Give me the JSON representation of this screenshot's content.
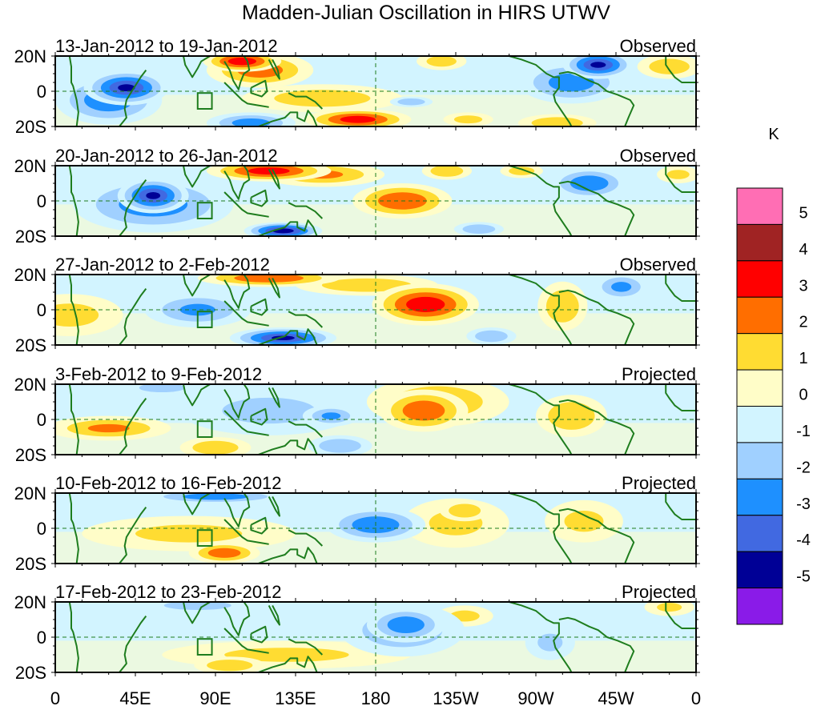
{
  "chart_data": {
    "type": "heatmap",
    "title": "Madden-Julian Oscillation in HIRS UTWV",
    "units": "K",
    "x_ticks": [
      "0",
      "45E",
      "90E",
      "135E",
      "180",
      "135W",
      "90W",
      "45W",
      "0"
    ],
    "x_range_deg_east": [
      0,
      360
    ],
    "y_ticks": [
      "20N",
      "0",
      "20S"
    ],
    "y_range_deg": [
      -20,
      20
    ],
    "colorbar": {
      "levels": [
        -5,
        -4,
        -3,
        -2,
        -1,
        0,
        1,
        2,
        3,
        4,
        5
      ],
      "tick_labels": [
        "5",
        "4",
        "3",
        "2",
        "1",
        "0",
        "-1",
        "-2",
        "-3",
        "-4",
        "-5"
      ],
      "colors": [
        "#8a1be8",
        "#000096",
        "#4169e1",
        "#1e90ff",
        "#a0d0ff",
        "#d2f4ff",
        "#fffdc8",
        "#ffdc32",
        "#ff6e00",
        "#ff0000",
        "#a02323",
        "#ff6eb4"
      ],
      "placement": "right"
    },
    "panels": [
      {
        "period": "13-Jan-2012 to 19-Jan-2012",
        "status": "Observed",
        "anomalies": [
          {
            "lon": 40,
            "lat": 2,
            "value": -4.5,
            "wlon": 24,
            "wlat": 10
          },
          {
            "lon": 30,
            "lat": -5,
            "value": -3.2,
            "wlon": 30,
            "wlat": 14
          },
          {
            "lon": 105,
            "lat": 17,
            "value": 4.2,
            "wlon": 22,
            "wlat": 6
          },
          {
            "lon": 115,
            "lat": 12,
            "value": 3,
            "wlon": 30,
            "wlat": 10
          },
          {
            "lon": 150,
            "lat": -4,
            "value": 2,
            "wlon": 45,
            "wlat": 8
          },
          {
            "lon": 170,
            "lat": -16,
            "value": 4,
            "wlon": 30,
            "wlat": 6
          },
          {
            "lon": 110,
            "lat": -18,
            "value": -3,
            "wlon": 25,
            "wlat": 6
          },
          {
            "lon": 305,
            "lat": 15,
            "value": -4.6,
            "wlon": 20,
            "wlat": 8
          },
          {
            "lon": 290,
            "lat": 5,
            "value": -3,
            "wlon": 30,
            "wlat": 12
          },
          {
            "lon": 345,
            "lat": 14,
            "value": 2.2,
            "wlon": 18,
            "wlat": 7
          },
          {
            "lon": 282,
            "lat": -18,
            "value": 2.4,
            "wlon": 22,
            "wlat": 5
          },
          {
            "lon": 217,
            "lat": 17,
            "value": 2,
            "wlon": 14,
            "wlat": 5
          },
          {
            "lon": 232,
            "lat": -16,
            "value": 1.8,
            "wlon": 14,
            "wlat": 4
          },
          {
            "lon": 200,
            "lat": -6,
            "value": -2.3,
            "wlon": 12,
            "wlat": 3
          }
        ]
      },
      {
        "period": "20-Jan-2012 to 26-Jan-2012",
        "status": "Observed",
        "anomalies": [
          {
            "lon": 55,
            "lat": 3,
            "value": -4.5,
            "wlon": 20,
            "wlat": 10
          },
          {
            "lon": 55,
            "lat": -2,
            "value": -3,
            "wlon": 45,
            "wlat": 16
          },
          {
            "lon": 120,
            "lat": 17,
            "value": 4,
            "wlon": 35,
            "wlat": 6
          },
          {
            "lon": 150,
            "lat": 15,
            "value": 2.5,
            "wlon": 35,
            "wlat": 7
          },
          {
            "lon": 195,
            "lat": 0,
            "value": 3.4,
            "wlon": 28,
            "wlat": 10
          },
          {
            "lon": 128,
            "lat": -17,
            "value": -5,
            "wlon": 22,
            "wlat": 5
          },
          {
            "lon": 300,
            "lat": 10,
            "value": -3.4,
            "wlon": 22,
            "wlat": 9
          },
          {
            "lon": 220,
            "lat": 17,
            "value": 2.4,
            "wlon": 14,
            "wlat": 5
          },
          {
            "lon": 262,
            "lat": 17,
            "value": 2,
            "wlon": 12,
            "wlat": 4
          },
          {
            "lon": 238,
            "lat": -16,
            "value": -2.4,
            "wlon": 14,
            "wlat": 4
          },
          {
            "lon": 350,
            "lat": 15,
            "value": 1.6,
            "wlon": 12,
            "wlat": 5
          }
        ]
      },
      {
        "period": "27-Jan-2012 to 2-Feb-2012",
        "status": "Observed",
        "anomalies": [
          {
            "lon": 80,
            "lat": 0,
            "value": -2.5,
            "wlon": 30,
            "wlat": 10
          },
          {
            "lon": 128,
            "lat": -16,
            "value": -4.6,
            "wlon": 30,
            "wlat": 6
          },
          {
            "lon": 120,
            "lat": 18,
            "value": 3.4,
            "wlon": 40,
            "wlat": 5
          },
          {
            "lon": 208,
            "lat": 3,
            "value": 4.2,
            "wlon": 30,
            "wlat": 12
          },
          {
            "lon": 175,
            "lat": 14,
            "value": 2.2,
            "wlon": 40,
            "wlat": 6
          },
          {
            "lon": 285,
            "lat": 2,
            "value": 2.4,
            "wlon": 14,
            "wlat": 14
          },
          {
            "lon": 8,
            "lat": -3,
            "value": 1.7,
            "wlon": 30,
            "wlat": 12
          },
          {
            "lon": 318,
            "lat": 13,
            "value": -2.6,
            "wlon": 16,
            "wlat": 8
          },
          {
            "lon": 245,
            "lat": -15,
            "value": -2.4,
            "wlon": 14,
            "wlat": 5
          }
        ]
      },
      {
        "period": "3-Feb-2012 to 9-Feb-2012",
        "status": "Projected",
        "anomalies": [
          {
            "lon": 30,
            "lat": -5,
            "value": 2.5,
            "wlon": 35,
            "wlat": 7
          },
          {
            "lon": 90,
            "lat": -16,
            "value": 2.3,
            "wlon": 20,
            "wlat": 6
          },
          {
            "lon": 120,
            "lat": 5,
            "value": -1.6,
            "wlon": 50,
            "wlat": 14
          },
          {
            "lon": 155,
            "lat": 2,
            "value": -2.5,
            "wlon": 16,
            "wlat": 6
          },
          {
            "lon": 160,
            "lat": -15,
            "value": -2.4,
            "wlon": 18,
            "wlat": 6
          },
          {
            "lon": 207,
            "lat": 5,
            "value": 3.3,
            "wlon": 25,
            "wlat": 12
          },
          {
            "lon": 215,
            "lat": 10,
            "value": 2.2,
            "wlon": 40,
            "wlat": 14
          },
          {
            "lon": 290,
            "lat": 2,
            "value": 2.4,
            "wlon": 20,
            "wlat": 12
          },
          {
            "lon": 60,
            "lat": 18,
            "value": -2.3,
            "wlon": 20,
            "wlat": 4
          }
        ]
      },
      {
        "period": "10-Feb-2012 to 16-Feb-2012",
        "status": "Projected",
        "anomalies": [
          {
            "lon": 95,
            "lat": -14,
            "value": 3.2,
            "wlon": 20,
            "wlat": 6
          },
          {
            "lon": 75,
            "lat": -3,
            "value": 1.5,
            "wlon": 60,
            "wlat": 10
          },
          {
            "lon": 180,
            "lat": 2,
            "value": -3.3,
            "wlon": 28,
            "wlat": 10
          },
          {
            "lon": 90,
            "lat": 18,
            "value": -3.2,
            "wlon": 40,
            "wlat": 4
          },
          {
            "lon": 230,
            "lat": 10,
            "value": 2.3,
            "wlon": 14,
            "wlat": 6
          },
          {
            "lon": 225,
            "lat": 3,
            "value": 1.5,
            "wlon": 30,
            "wlat": 14
          },
          {
            "lon": 297,
            "lat": 4,
            "value": 1.5,
            "wlon": 22,
            "wlat": 12
          }
        ]
      },
      {
        "period": "17-Feb-2012 to 23-Feb-2012",
        "status": "Projected",
        "anomalies": [
          {
            "lon": 197,
            "lat": 7,
            "value": -3.3,
            "wlon": 22,
            "wlat": 10
          },
          {
            "lon": 195,
            "lat": 4,
            "value": -2.3,
            "wlon": 35,
            "wlat": 15
          },
          {
            "lon": 98,
            "lat": -16,
            "value": 2.3,
            "wlon": 20,
            "wlat": 5
          },
          {
            "lon": 130,
            "lat": -10,
            "value": 1.5,
            "wlon": 70,
            "wlat": 8
          },
          {
            "lon": 80,
            "lat": 18,
            "value": -2.2,
            "wlon": 30,
            "wlat": 4
          },
          {
            "lon": 230,
            "lat": 12,
            "value": 1.6,
            "wlon": 16,
            "wlat": 6
          },
          {
            "lon": 345,
            "lat": 17,
            "value": 1.5,
            "wlon": 14,
            "wlat": 5
          },
          {
            "lon": 278,
            "lat": -3,
            "value": -1.5,
            "wlon": 14,
            "wlat": 10
          }
        ]
      }
    ]
  }
}
